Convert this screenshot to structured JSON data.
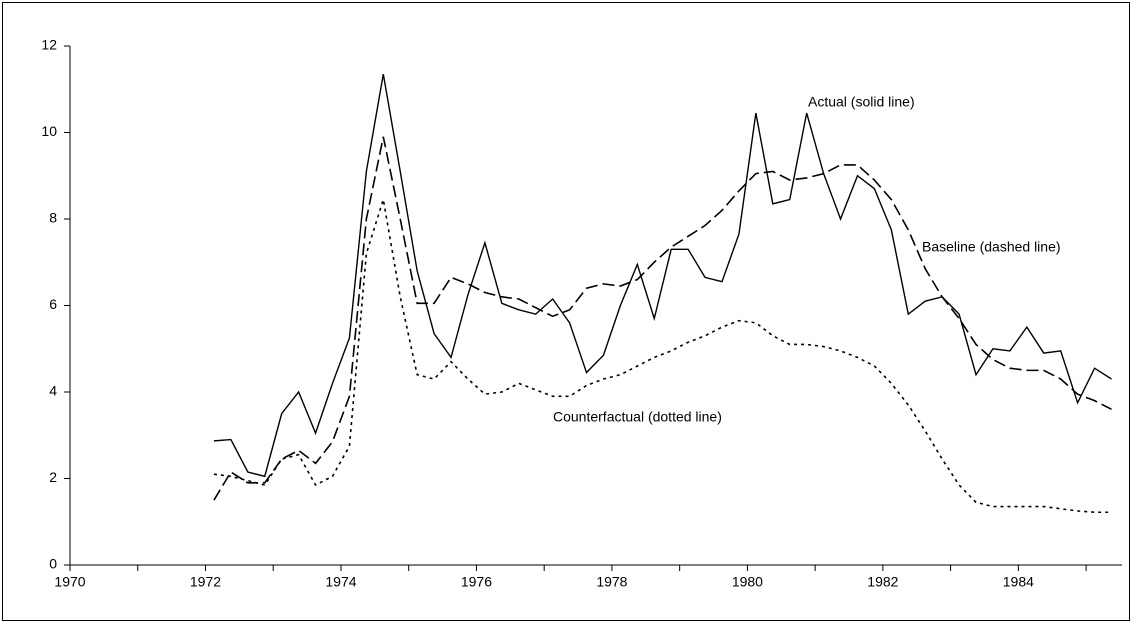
{
  "chart_data": {
    "type": "line",
    "x": [
      1972.125,
      1972.375,
      1972.625,
      1972.875,
      1973.125,
      1973.375,
      1973.625,
      1973.875,
      1974.125,
      1974.375,
      1974.625,
      1974.875,
      1975.125,
      1975.375,
      1975.625,
      1975.875,
      1976.125,
      1976.375,
      1976.625,
      1976.875,
      1977.125,
      1977.375,
      1977.625,
      1977.875,
      1978.125,
      1978.375,
      1978.625,
      1978.875,
      1979.125,
      1979.375,
      1979.625,
      1979.875,
      1980.125,
      1980.375,
      1980.625,
      1980.875,
      1981.125,
      1981.375,
      1981.625,
      1981.875,
      1982.125,
      1982.375,
      1982.625,
      1982.875,
      1983.125,
      1983.375,
      1983.625,
      1983.875,
      1984.125,
      1984.375,
      1984.625,
      1984.875,
      1985.125,
      1985.375
    ],
    "series": [
      {
        "name": "Actual (solid line)",
        "color": "#000000",
        "style": "solid",
        "values": [
          2.87,
          2.9,
          2.15,
          2.05,
          3.5,
          4.0,
          3.05,
          4.2,
          5.25,
          9.1,
          11.35,
          9.1,
          6.8,
          5.35,
          4.8,
          6.25,
          7.45,
          6.05,
          5.9,
          5.8,
          6.15,
          5.6,
          4.45,
          4.85,
          6.0,
          6.95,
          5.7,
          7.3,
          7.3,
          6.65,
          6.55,
          7.65,
          10.45,
          8.35,
          8.45,
          10.45,
          9.05,
          8.0,
          9.0,
          8.7,
          7.75,
          5.8,
          6.1,
          6.2,
          5.8,
          4.4,
          5.0,
          4.95,
          5.5,
          4.9,
          4.95,
          3.75,
          4.55,
          4.3
        ]
      },
      {
        "name": "Baseline (dashed line)",
        "color": "#000000",
        "style": "dashed",
        "values": [
          1.5,
          2.15,
          1.9,
          1.9,
          2.45,
          2.65,
          2.35,
          2.85,
          3.9,
          8.0,
          9.9,
          8.0,
          6.05,
          6.05,
          6.65,
          6.5,
          6.3,
          6.2,
          6.15,
          5.95,
          5.75,
          5.9,
          6.4,
          6.5,
          6.45,
          6.6,
          7.0,
          7.35,
          7.6,
          7.85,
          8.2,
          8.65,
          9.05,
          9.1,
          8.9,
          8.95,
          9.05,
          9.25,
          9.25,
          8.9,
          8.45,
          7.75,
          6.85,
          6.2,
          5.7,
          5.1,
          4.75,
          4.55,
          4.5,
          4.5,
          4.3,
          3.95,
          3.8,
          3.6
        ]
      },
      {
        "name": "Counterfactual (dotted line)",
        "color": "#000000",
        "style": "dotted",
        "values": [
          2.1,
          2.05,
          1.95,
          1.85,
          2.45,
          2.55,
          1.85,
          2.05,
          2.75,
          7.2,
          8.45,
          6.2,
          4.4,
          4.3,
          4.7,
          4.3,
          3.95,
          4.0,
          4.2,
          4.05,
          3.9,
          3.9,
          4.15,
          4.3,
          4.4,
          4.6,
          4.8,
          4.95,
          5.15,
          5.3,
          5.5,
          5.65,
          5.6,
          5.3,
          5.1,
          5.1,
          5.05,
          4.95,
          4.8,
          4.6,
          4.2,
          3.7,
          3.1,
          2.45,
          1.85,
          1.45,
          1.35,
          1.35,
          1.35,
          1.35,
          1.3,
          1.25,
          1.22,
          1.22
        ]
      }
    ],
    "xlim": [
      1970,
      1985.53
    ],
    "xticks": [
      1970,
      1972,
      1974,
      1976,
      1978,
      1980,
      1982,
      1984
    ],
    "x_minor_ticks": [
      1971,
      1973,
      1975,
      1977,
      1979,
      1981,
      1983,
      1985
    ],
    "ylim": [
      0,
      12
    ],
    "yticks": [
      0,
      2,
      4,
      6,
      8,
      10,
      12
    ],
    "grid": false
  }
}
